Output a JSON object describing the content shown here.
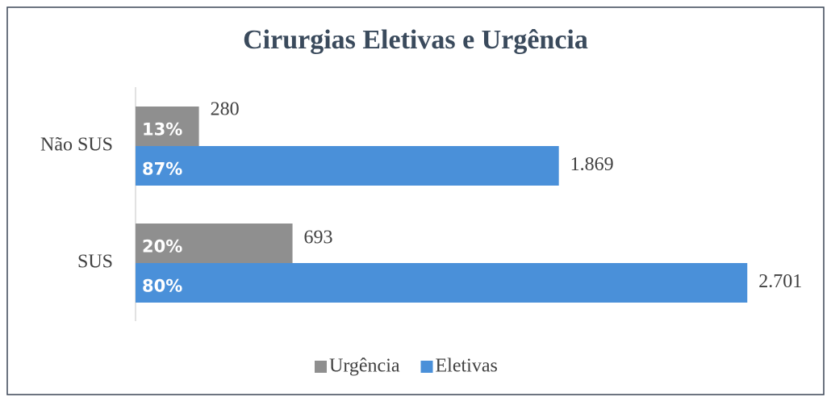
{
  "chart_data": {
    "type": "bar",
    "orientation": "horizontal",
    "title": "Cirurgias Eletivas e Urgência",
    "categories": [
      "Não SUS",
      "SUS"
    ],
    "series": [
      {
        "name": "Urgência",
        "color": "#8f8f8f",
        "values": [
          280,
          693
        ],
        "share_labels": [
          "13%",
          "20%"
        ]
      },
      {
        "name": "Eletivas",
        "color": "#4a90d9",
        "values": [
          1869,
          2701
        ],
        "value_labels": [
          "1.869",
          "2.701"
        ],
        "share_labels": [
          "87%",
          "80%"
        ]
      }
    ],
    "xlim": [
      0,
      2750
    ],
    "legend": "bottom"
  }
}
